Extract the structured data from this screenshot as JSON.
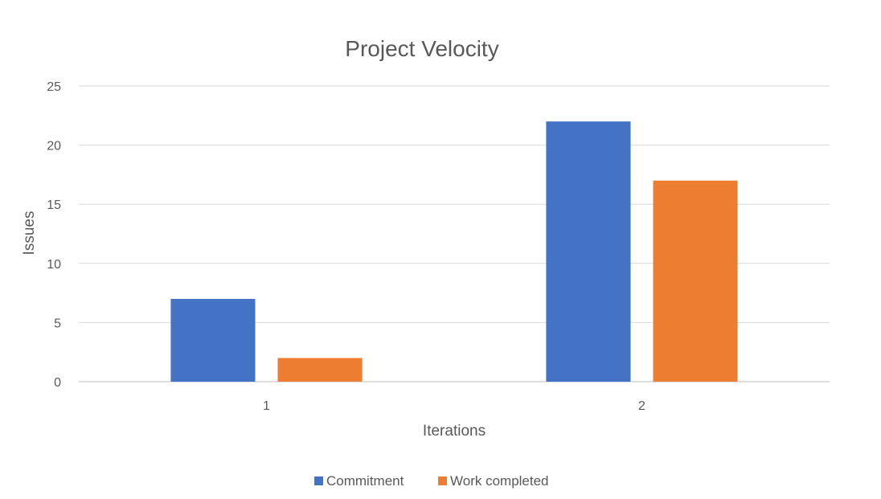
{
  "chart_data": {
    "type": "bar",
    "title": "Project Velocity",
    "xlabel": "Iterations",
    "ylabel": "Issues",
    "categories": [
      "1",
      "2"
    ],
    "series": [
      {
        "name": "Commitment",
        "values": [
          7,
          22
        ],
        "color": "#4472C4"
      },
      {
        "name": "Work completed",
        "values": [
          2,
          17
        ],
        "color": "#ED7D31"
      }
    ],
    "ylim": [
      0,
      25
    ],
    "yticks": [
      "0",
      "5",
      "10",
      "15",
      "20",
      "25"
    ],
    "grid": true,
    "legend_position": "bottom"
  }
}
